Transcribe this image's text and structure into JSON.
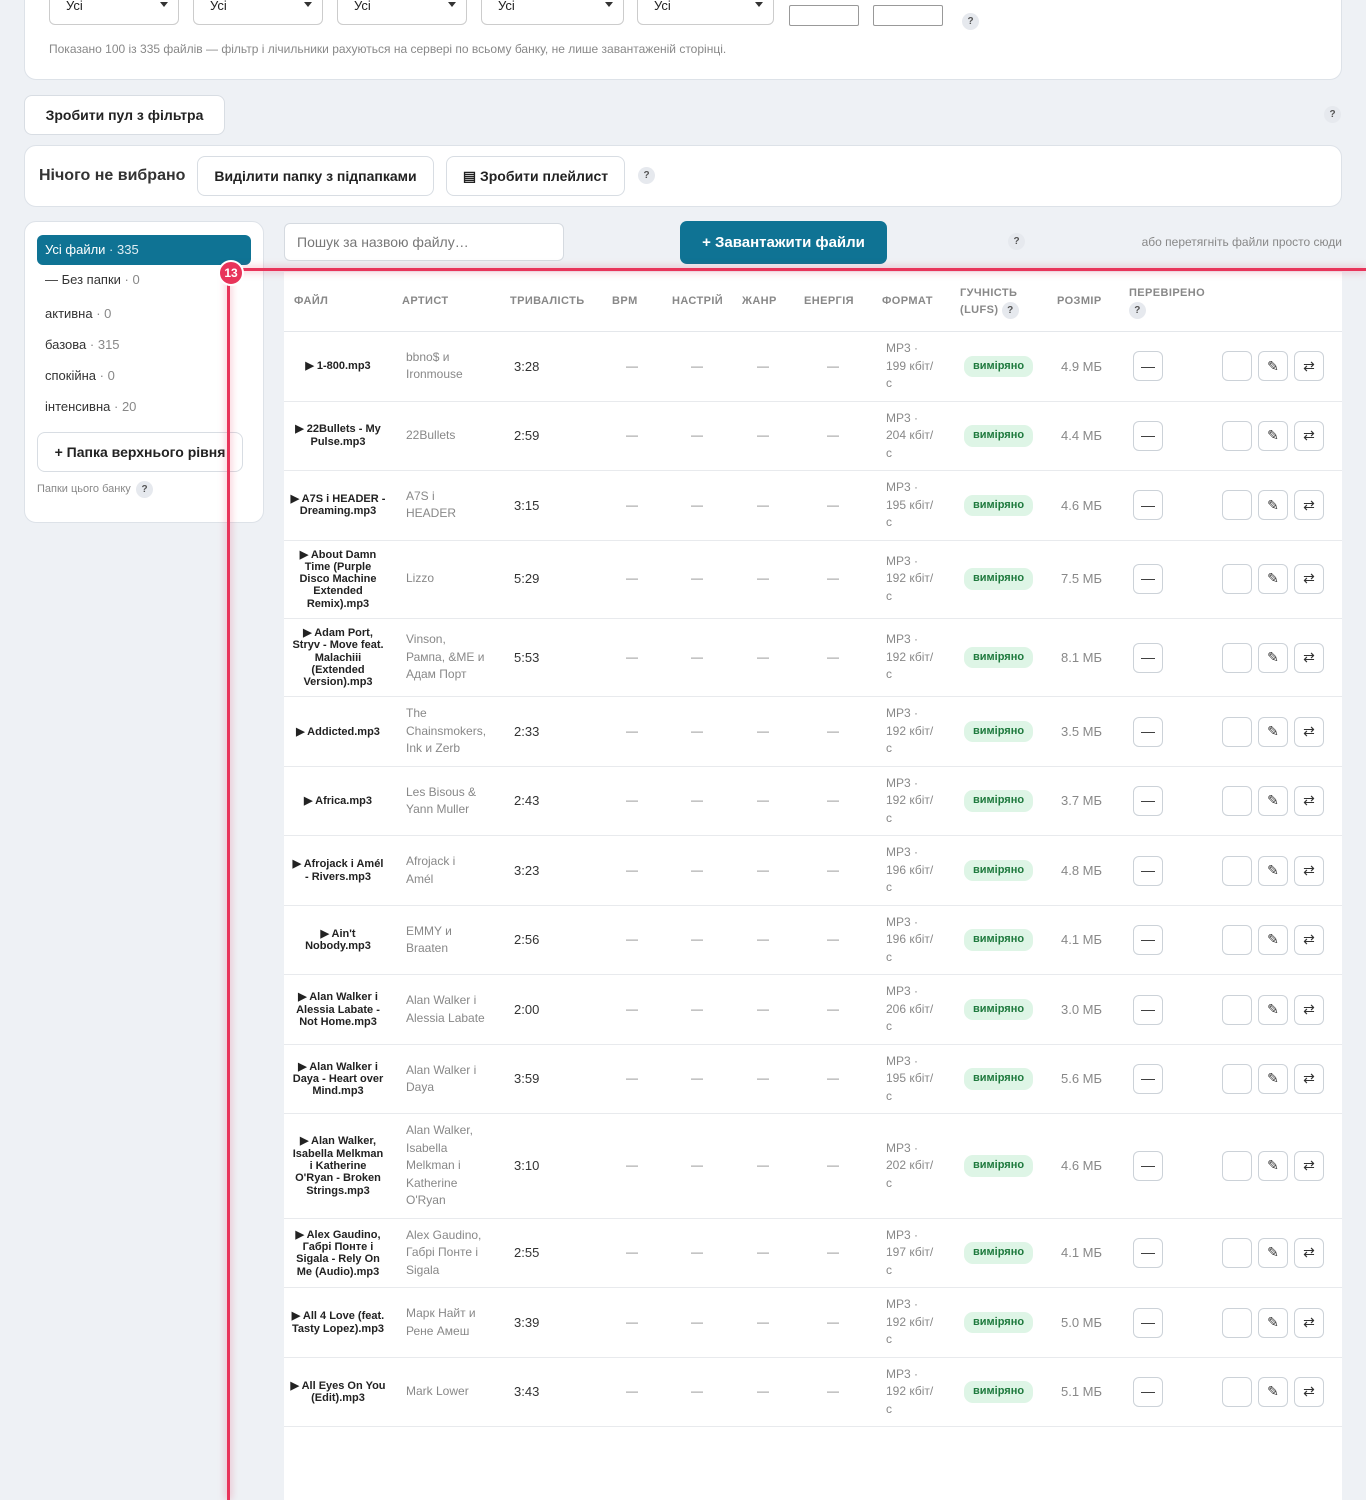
{
  "filters": {
    "selects": [
      "Усі",
      "Усі",
      "Усі",
      "Усі",
      "Усі"
    ],
    "info": "Показано 100 із 335 файлів — фільтр і лічильники рахуються на сервері по всьому банку, не лише завантаженій сторінці."
  },
  "help": "?",
  "pool_button": "Зробити пул з фільтра",
  "selection": {
    "status": "Нічого не вибрано",
    "select_folder": "Виділити папку з підпапками",
    "make_playlist": "▤ Зробити плейлист"
  },
  "sidebar": {
    "folders": [
      {
        "name": "Усі файли",
        "count": 335
      },
      {
        "name": "— Без папки",
        "count": 0
      },
      {
        "name": "активна",
        "count": 0
      },
      {
        "name": "базова",
        "count": 315
      },
      {
        "name": "спокійна",
        "count": 0
      },
      {
        "name": "інтенсивна",
        "count": 20
      }
    ],
    "add_folder": "+ Папка верхнього рівня",
    "note": "Папки цього банку"
  },
  "upload": {
    "search_placeholder": "Пошук за назвою файлу…",
    "button": "+ Завантажити файли",
    "drop_hint": "або перетягніть файли просто сюди"
  },
  "annotation": {
    "badge": "13"
  },
  "table": {
    "columns": [
      "ФАЙЛ",
      "АРТИСТ",
      "ТРИВАЛІСТЬ",
      "BPM",
      "НАСТРІЙ",
      "ЖАНР",
      "ЕНЕРГІЯ",
      "ФОРМАТ",
      "ГУЧНІСТЬ (LUFS)",
      "РОЗМІР",
      "ПЕРЕВІРЕНО"
    ],
    "actions": [
      "✎",
      "⇄"
    ],
    "rows": [
      [
        "▶ 1-800.mp3",
        "bbno$ и Ironmouse",
        "3:28",
        "—",
        "—",
        "—",
        "—",
        "MP3 · 199 кбіт/с",
        "виміряно",
        "4.9 МБ",
        "—"
      ],
      [
        "▶ 22Bullets - My Pulse.mp3",
        "22Bullets",
        "2:59",
        "—",
        "—",
        "—",
        "—",
        "MP3 · 204 кбіт/с",
        "виміряно",
        "4.4 МБ",
        "—"
      ],
      [
        "▶ A7S i HEADER - Dreaming.mp3",
        "A7S і HEADER",
        "3:15",
        "—",
        "—",
        "—",
        "—",
        "MP3 · 195 кбіт/с",
        "виміряно",
        "4.6 МБ",
        "—"
      ],
      [
        "▶ About Damn Time (Purple Disco Machine Extended Remix).mp3",
        "Lizzo",
        "5:29",
        "—",
        "—",
        "—",
        "—",
        "MP3 · 192 кбіт/с",
        "виміряно",
        "7.5 МБ",
        "—"
      ],
      [
        "▶ Adam Port, Stryv - Move feat. Malachiii (Extended Version).mp3",
        "Vinson, Рампа, &ME и Адам Порт",
        "5:53",
        "—",
        "—",
        "—",
        "—",
        "MP3 · 192 кбіт/с",
        "виміряно",
        "8.1 МБ",
        "—"
      ],
      [
        "▶ Addicted.mp3",
        "The Chainsmokers, Ink и Zerb",
        "2:33",
        "—",
        "—",
        "—",
        "—",
        "MP3 · 192 кбіт/с",
        "виміряно",
        "3.5 МБ",
        "—"
      ],
      [
        "▶ Africa.mp3",
        "Les Bisous & Yann Muller",
        "2:43",
        "—",
        "—",
        "—",
        "—",
        "MP3 · 192 кбіт/с",
        "виміряно",
        "3.7 МБ",
        "—"
      ],
      [
        "▶ Afrojack i Amél - Rivers.mp3",
        "Afrojack і Amél",
        "3:23",
        "—",
        "—",
        "—",
        "—",
        "MP3 · 196 кбіт/с",
        "виміряно",
        "4.8 МБ",
        "—"
      ],
      [
        "▶ Ain't Nobody.mp3",
        "EMMY и Braaten",
        "2:56",
        "—",
        "—",
        "—",
        "—",
        "MP3 · 196 кбіт/с",
        "виміряно",
        "4.1 МБ",
        "—"
      ],
      [
        "▶ Alan Walker i Alessia Labate - Not Home.mp3",
        "Alan Walker і Alessia Labate",
        "2:00",
        "—",
        "—",
        "—",
        "—",
        "MP3 · 206 кбіт/с",
        "виміряно",
        "3.0 МБ",
        "—"
      ],
      [
        "▶ Alan Walker i Daya - Heart over Mind.mp3",
        "Alan Walker і Daya",
        "3:59",
        "—",
        "—",
        "—",
        "—",
        "MP3 · 195 кбіт/с",
        "виміряно",
        "5.6 МБ",
        "—"
      ],
      [
        "▶ Alan Walker, Isabella Melkman i Katherine O'Ryan - Broken Strings.mp3",
        "Alan Walker, Isabella Melkman і Katherine O'Ryan",
        "3:10",
        "—",
        "—",
        "—",
        "—",
        "MP3 · 202 кбіт/с",
        "виміряно",
        "4.6 МБ",
        "—"
      ],
      [
        "▶ Alex Gaudino, Габрі Понте i Sigala - Rely On Me (Audio).mp3",
        "Alex Gaudino, Габрі Понте і Sigala",
        "2:55",
        "—",
        "—",
        "—",
        "—",
        "MP3 · 197 кбіт/с",
        "виміряно",
        "4.1 МБ",
        "—"
      ],
      [
        "▶ All 4 Love (feat. Tasty Lopez).mp3",
        "Марк Найт и Рене Амеш",
        "3:39",
        "—",
        "—",
        "—",
        "—",
        "MP3 · 192 кбіт/с",
        "виміряно",
        "5.0 МБ",
        "—"
      ],
      [
        "▶ All Eyes On You (Edit).mp3",
        "Mark Lower",
        "3:43",
        "—",
        "—",
        "—",
        "—",
        "MP3 · 192 кбіт/с",
        "виміряно",
        "5.1 МБ",
        "—"
      ]
    ]
  }
}
